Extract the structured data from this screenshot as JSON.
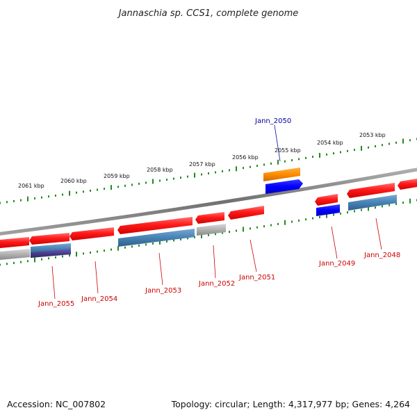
{
  "title": "Jannaschia sp. CCS1, complete genome",
  "footer": {
    "accession": "Accession: NC_007802",
    "topology": "Topology: circular; Length: 4,317,977 bp; Genes: 4,264"
  },
  "colors": {
    "backbone": "#808080",
    "ruler_dots": "#1e8c1e",
    "gene_red": "#ff1a1a",
    "gene_blue": "#0000ff",
    "gene_orange": "#ff8c00",
    "gene_steel": "#4682b4",
    "gene_gray": "#b0b0b0",
    "gene_purple": "#483d8b",
    "label_red": "#cc0000",
    "label_blue": "#000099"
  },
  "ticks": [
    {
      "label": "2061 kbp"
    },
    {
      "label": "2060 kbp"
    },
    {
      "label": "2059 kbp"
    },
    {
      "label": "2058 kbp"
    },
    {
      "label": "2057 kbp"
    },
    {
      "label": "2056 kbp"
    },
    {
      "label": "2055 kbp"
    },
    {
      "label": "2054 kbp"
    },
    {
      "label": "2053 kbp"
    }
  ],
  "gene_labels": [
    {
      "text": "Jann_2050",
      "color": "blue"
    },
    {
      "text": "Jann_2049",
      "color": "red"
    },
    {
      "text": "Jann_2048",
      "color": "red"
    },
    {
      "text": "Jann_2051",
      "color": "red"
    },
    {
      "text": "Jann_2052",
      "color": "red"
    },
    {
      "text": "Jann_2053",
      "color": "red"
    },
    {
      "text": "Jann_2054",
      "color": "red"
    },
    {
      "text": "Jann_2055",
      "color": "red"
    }
  ]
}
